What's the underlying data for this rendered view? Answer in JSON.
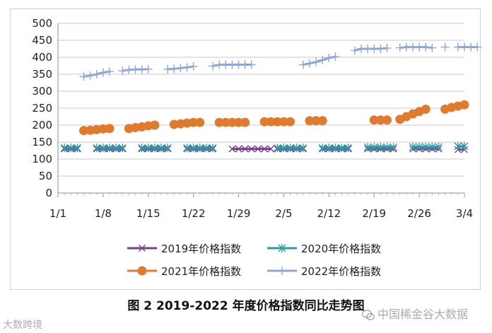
{
  "chart_data": {
    "type": "line",
    "title": "图 2    2019-2022 年度价格指数同比走势图",
    "xlabel": "",
    "ylabel": "",
    "ylim": [
      0,
      500
    ],
    "yticks": [
      0,
      50,
      100,
      150,
      200,
      250,
      300,
      350,
      400,
      450,
      500
    ],
    "xlim": [
      0,
      63
    ],
    "xticks": [
      {
        "day": 0,
        "label": "1/1"
      },
      {
        "day": 7,
        "label": "1/8"
      },
      {
        "day": 14,
        "label": "1/15"
      },
      {
        "day": 21,
        "label": "1/22"
      },
      {
        "day": 28,
        "label": "1/29"
      },
      {
        "day": 35,
        "label": "2/5"
      },
      {
        "day": 42,
        "label": "2/12"
      },
      {
        "day": 49,
        "label": "2/19"
      },
      {
        "day": 56,
        "label": "2/26"
      },
      {
        "day": 63,
        "label": "3/4"
      }
    ],
    "grid": "horizontal",
    "legend_position": "bottom",
    "series": [
      {
        "name": "2019年价格指数",
        "color": "#7b3f8c",
        "marker": "x",
        "segments": [
          [
            [
              1,
              130
            ],
            [
              2,
              130
            ],
            [
              3,
              130
            ]
          ],
          [
            [
              6,
              130
            ],
            [
              7,
              130
            ],
            [
              8,
              130
            ],
            [
              9,
              130
            ],
            [
              10,
              130
            ]
          ],
          [
            [
              13,
              130
            ],
            [
              14,
              130
            ],
            [
              15,
              130
            ],
            [
              16,
              130
            ],
            [
              17,
              130
            ]
          ],
          [
            [
              20,
              130
            ],
            [
              21,
              130
            ],
            [
              22,
              130
            ],
            [
              23,
              130
            ],
            [
              24,
              130
            ]
          ],
          [
            [
              27,
              130
            ],
            [
              28,
              130
            ],
            [
              29,
              130
            ],
            [
              30,
              130
            ],
            [
              31,
              130
            ],
            [
              32,
              130
            ],
            [
              33,
              130
            ]
          ],
          [
            [
              34,
              130
            ],
            [
              35,
              130
            ],
            [
              36,
              130
            ],
            [
              37,
              130
            ],
            [
              38,
              130
            ]
          ],
          [
            [
              41,
              130
            ],
            [
              42,
              130
            ],
            [
              43,
              130
            ],
            [
              44,
              130
            ],
            [
              45,
              130
            ]
          ],
          [
            [
              48,
              130
            ],
            [
              49,
              130
            ],
            [
              50,
              130
            ],
            [
              51,
              130
            ],
            [
              52,
              130
            ]
          ],
          [
            [
              55,
              130
            ],
            [
              56,
              130
            ],
            [
              57,
              130
            ],
            [
              58,
              130
            ],
            [
              59,
              130
            ]
          ],
          [
            [
              62,
              128
            ],
            [
              63,
              128
            ]
          ]
        ]
      },
      {
        "name": "2020年价格指数",
        "color": "#2e9aa6",
        "marker": "*",
        "segments": [
          [
            [
              1,
              133
            ],
            [
              2,
              133
            ],
            [
              3,
              133
            ]
          ],
          [
            [
              6,
              133
            ],
            [
              7,
              133
            ],
            [
              8,
              133
            ],
            [
              9,
              133
            ],
            [
              10,
              133
            ]
          ],
          [
            [
              13,
              133
            ],
            [
              14,
              133
            ],
            [
              15,
              133
            ],
            [
              16,
              133
            ],
            [
              17,
              133
            ]
          ],
          [
            [
              20,
              133
            ],
            [
              21,
              133
            ],
            [
              22,
              133
            ],
            [
              23,
              133
            ],
            [
              24,
              133
            ]
          ],
          [
            [
              34,
              133
            ],
            [
              35,
              133
            ],
            [
              36,
              133
            ],
            [
              37,
              133
            ],
            [
              38,
              133
            ]
          ],
          [
            [
              41,
              133
            ],
            [
              42,
              133
            ],
            [
              43,
              133
            ],
            [
              44,
              133
            ],
            [
              45,
              133
            ]
          ],
          [
            [
              48,
              135
            ],
            [
              49,
              135
            ],
            [
              50,
              135
            ],
            [
              51,
              135
            ],
            [
              52,
              135
            ]
          ],
          [
            [
              55,
              136
            ],
            [
              56,
              136
            ],
            [
              57,
              136
            ],
            [
              58,
              136
            ],
            [
              59,
              136
            ]
          ],
          [
            [
              62,
              138
            ],
            [
              63,
              138
            ]
          ]
        ]
      },
      {
        "name": "2021年价格指数",
        "color": "#e07b2e",
        "marker": "circle",
        "segments": [
          [
            [
              4,
              184
            ],
            [
              5,
              185
            ],
            [
              6,
              187
            ],
            [
              7,
              189
            ],
            [
              8,
              190
            ]
          ],
          [
            [
              11,
              190
            ],
            [
              12,
              193
            ],
            [
              13,
              195
            ],
            [
              14,
              198
            ],
            [
              15,
              200
            ]
          ],
          [
            [
              18,
              202
            ],
            [
              19,
              204
            ],
            [
              20,
              206
            ],
            [
              21,
              208
            ],
            [
              22,
              208
            ]
          ],
          [
            [
              25,
              208
            ],
            [
              26,
              208
            ],
            [
              27,
              208
            ],
            [
              28,
              208
            ],
            [
              29,
              208
            ]
          ],
          [
            [
              32,
              210
            ],
            [
              33,
              210
            ],
            [
              34,
              210
            ],
            [
              35,
              210
            ],
            [
              36,
              210
            ]
          ],
          [
            [
              39,
              213
            ],
            [
              40,
              213
            ],
            [
              41,
              213
            ]
          ],
          [
            [
              49,
              215
            ],
            [
              50,
              215
            ],
            [
              51,
              215
            ]
          ],
          [
            [
              53,
              217
            ],
            [
              54,
              225
            ],
            [
              55,
              233
            ],
            [
              56,
              240
            ],
            [
              57,
              247
            ]
          ],
          [
            [
              60,
              247
            ],
            [
              61,
              252
            ],
            [
              62,
              256
            ],
            [
              63,
              260
            ]
          ]
        ]
      },
      {
        "name": "2022年价格指数",
        "color": "#8ea7d6",
        "marker": "+",
        "segments": [
          [
            [
              4,
              343
            ],
            [
              5,
              346
            ],
            [
              6,
              350
            ],
            [
              7,
              355
            ],
            [
              8,
              358
            ]
          ],
          [
            [
              10,
              360
            ],
            [
              11,
              363
            ],
            [
              12,
              364
            ],
            [
              13,
              364
            ],
            [
              14,
              365
            ]
          ],
          [
            [
              17,
              365
            ],
            [
              18,
              366
            ],
            [
              19,
              368
            ],
            [
              20,
              370
            ],
            [
              21,
              373
            ]
          ],
          [
            [
              24,
              374
            ],
            [
              25,
              378
            ],
            [
              26,
              378
            ],
            [
              27,
              378
            ],
            [
              28,
              378
            ],
            [
              29,
              378
            ],
            [
              30,
              378
            ]
          ],
          [
            [
              38,
              378
            ],
            [
              39,
              382
            ],
            [
              40,
              386
            ],
            [
              41,
              392
            ],
            [
              42,
              398
            ],
            [
              43,
              402
            ]
          ],
          [
            [
              46,
              420
            ],
            [
              47,
              425
            ],
            [
              48,
              425
            ],
            [
              49,
              425
            ],
            [
              50,
              425
            ],
            [
              51,
              427
            ]
          ],
          [
            [
              53,
              428
            ],
            [
              54,
              430
            ],
            [
              55,
              430
            ],
            [
              56,
              430
            ],
            [
              57,
              430
            ],
            [
              58,
              428
            ]
          ],
          [
            [
              60,
              430
            ]
          ],
          [
            [
              62,
              430
            ],
            [
              63,
              430
            ],
            [
              64,
              430
            ],
            [
              65,
              430
            ]
          ]
        ]
      }
    ]
  },
  "caption": "图 2    2019-2022 年度价格指数同比走势图",
  "watermarks": {
    "left": "大数跨境",
    "right": "中国稀金谷大数据"
  }
}
